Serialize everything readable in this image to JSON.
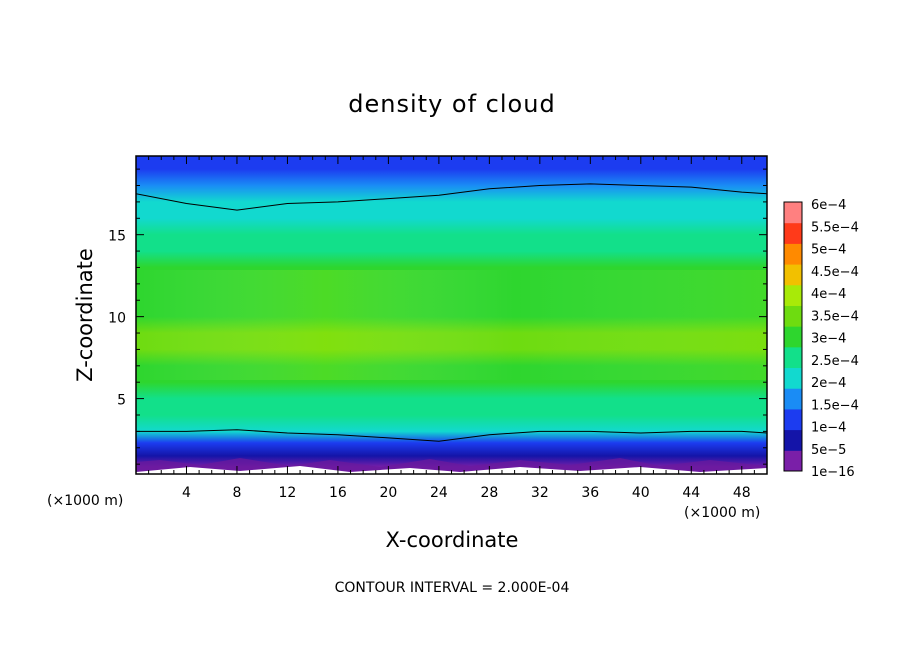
{
  "chart_data": {
    "type": "heatmap",
    "title": "density of cloud",
    "xlabel": "X-coordinate",
    "ylabel": "Z-coordinate",
    "x_unit": "(×1000 m)",
    "y_unit": "(×1000 m)",
    "xlim": [
      0,
      50
    ],
    "ylim": [
      0.4,
      19.8
    ],
    "x_ticks": [
      "4",
      "8",
      "12",
      "16",
      "20",
      "24",
      "28",
      "32",
      "36",
      "40",
      "44",
      "48"
    ],
    "y_ticks": [
      "5",
      "10",
      "15"
    ],
    "x_tick_values": [
      4,
      8,
      12,
      16,
      20,
      24,
      28,
      32,
      36,
      40,
      44,
      48
    ],
    "y_tick_values": [
      5,
      10,
      15
    ],
    "footer": "CONTOUR INTERVAL = 2.000E-04",
    "colorbar": {
      "labels": [
        "1e−16",
        "5e−5",
        "1e−4",
        "1.5e−4",
        "2e−4",
        "2.5e−4",
        "3e−4",
        "3.5e−4",
        "4e−4",
        "4.5e−4",
        "5e−4",
        "5.5e−4",
        "6e−4"
      ],
      "colors": [
        "#7a1fa8",
        "#1414a8",
        "#1c3cf0",
        "#1a8cf5",
        "#12d9cf",
        "#12e08a",
        "#2ed62e",
        "#6edc10",
        "#a8ea08",
        "#f2c000",
        "#ff8a00",
        "#ff3a1a",
        "#ff8080"
      ]
    },
    "profile": {
      "z": [
        0.8,
        1.5,
        2.3,
        3.0,
        4.0,
        5.0,
        6.0,
        7.0,
        8.0,
        9.0,
        10.0,
        11.0,
        12.0,
        13.0,
        14.0,
        15.0,
        16.0,
        17.0,
        18.0,
        19.0,
        19.8
      ],
      "density": [
        1e-16,
        5e-05,
        0.00012,
        0.0002,
        0.00025,
        0.00028,
        0.00031,
        0.00033,
        0.00035,
        0.00035,
        0.00034,
        0.00033,
        0.00032,
        0.0003,
        0.00028,
        0.00025,
        0.00023,
        0.00021,
        0.00017,
        0.00013,
        0.0001
      ]
    },
    "contour_2e-4_z": {
      "x": [
        0,
        4,
        8,
        12,
        16,
        20,
        24,
        28,
        32,
        36,
        40,
        44,
        48,
        50
      ],
      "lower": [
        3.0,
        3.0,
        3.1,
        2.9,
        2.8,
        2.6,
        2.4,
        2.8,
        3.0,
        3.0,
        2.9,
        3.0,
        3.0,
        2.9
      ],
      "upper": [
        17.5,
        16.9,
        16.5,
        16.9,
        17.0,
        17.2,
        17.4,
        17.8,
        18.0,
        18.1,
        18.0,
        17.9,
        17.6,
        17.5
      ]
    },
    "grid": false,
    "legend": "right"
  }
}
